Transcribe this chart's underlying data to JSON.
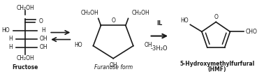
{
  "bg_color": "#ffffff",
  "fig_width": 3.78,
  "fig_height": 1.06,
  "dpi": 100,
  "fructose_label": "Fructose",
  "furanose_label": "Furanose form",
  "hmf_label1": "5-Hydroxymethylfurfural",
  "hmf_label2": "(HMF)",
  "arrow_label_top": "IL",
  "arrow_label_bottom": "-3H₂O",
  "text_color": "#1a1a1a",
  "line_color": "#1a1a1a",
  "line_width": 1.2,
  "base_fontsize": 6.0
}
